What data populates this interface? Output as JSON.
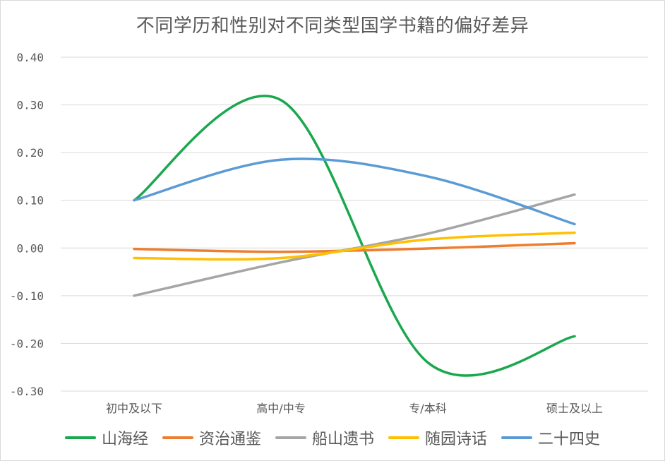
{
  "chart_data": {
    "type": "line",
    "title": "不同学历和性别对不同类型国学书籍的偏好差异",
    "categories": [
      "初中及以下",
      "高中/中专",
      "专/本科",
      "硕士及以上"
    ],
    "ylim": [
      -0.3,
      0.4
    ],
    "yticks": [
      "0.40",
      "0.30",
      "0.20",
      "0.10",
      "0.00",
      "-0.10",
      "-0.20",
      "-0.30"
    ],
    "ytick_values": [
      0.4,
      0.3,
      0.2,
      0.1,
      0.0,
      -0.1,
      -0.2,
      -0.3
    ],
    "grid": true,
    "smooth": true,
    "legend_position": "bottom",
    "series": [
      {
        "name": "山海经",
        "color": "#1aa84e",
        "values": [
          0.1,
          0.31,
          -0.24,
          -0.185
        ]
      },
      {
        "name": "资治通鉴",
        "color": "#ed7d31",
        "values": [
          -0.002,
          -0.008,
          -0.001,
          0.01
        ]
      },
      {
        "name": "船山遗书",
        "color": "#a5a5a5",
        "values": [
          -0.1,
          -0.03,
          0.03,
          0.112
        ]
      },
      {
        "name": "随园诗话",
        "color": "#ffc000",
        "values": [
          -0.021,
          -0.021,
          0.018,
          0.032
        ]
      },
      {
        "name": "二十四史",
        "color": "#5b9bd5",
        "values": [
          0.1,
          0.185,
          0.15,
          0.05
        ]
      }
    ]
  }
}
